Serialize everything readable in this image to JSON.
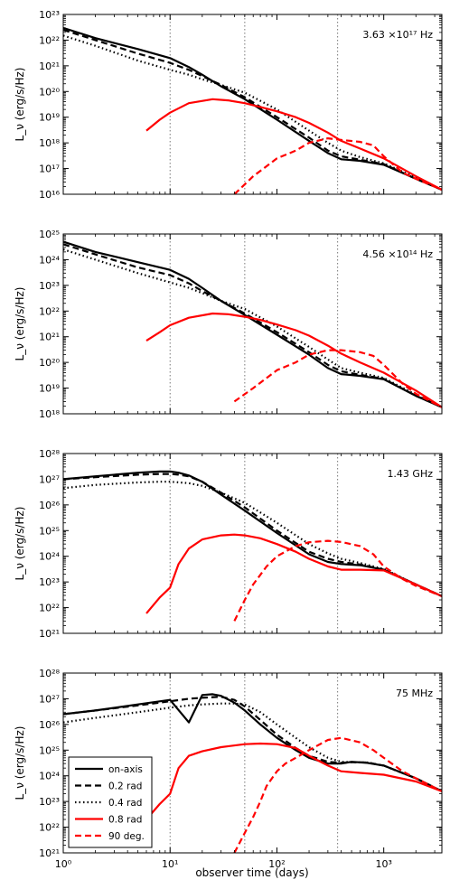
{
  "figure": {
    "x_axis": {
      "label": "observer time (days)",
      "scale": "log",
      "range": [
        1,
        3500
      ],
      "tick_labels": [
        "10⁰",
        "10¹",
        "10²",
        "10³"
      ],
      "tick_values": [
        1,
        10,
        100,
        1000
      ]
    },
    "reference_lines_days": [
      10,
      50,
      370
    ],
    "legend": {
      "placement": "lower-left of bottom panel",
      "entries": [
        {
          "label": "on-axis",
          "color": "#000000",
          "style": "solid"
        },
        {
          "label": "0.2 rad",
          "color": "#000000",
          "style": "dashed"
        },
        {
          "label": "0.4 rad",
          "color": "#000000",
          "style": "dotted"
        },
        {
          "label": "0.8 rad",
          "color": "#ff0000",
          "style": "solid"
        },
        {
          "label": "90 deg.",
          "color": "#ff0000",
          "style": "dashed"
        }
      ]
    }
  },
  "chart_data": [
    {
      "type": "line",
      "freq_label": "3.63 ×10¹⁷ Hz",
      "ylabel": "L_ν (erg/s/Hz)",
      "yscale": "log",
      "ylim": [
        1e+16,
        1e+23
      ],
      "ytick_labels": [
        "10¹⁶",
        "10¹⁷",
        "10¹⁸",
        "10¹⁹",
        "10²⁰",
        "10²¹",
        "10²²",
        "10²³"
      ],
      "series": [
        {
          "name": "on-axis",
          "x": [
            1,
            2,
            5,
            10,
            15,
            20,
            30,
            50,
            100,
            200,
            300,
            400,
            600,
            1000,
            2000,
            3500
          ],
          "y": [
            3e+22,
            1.2e+22,
            4.5e+21,
            2e+21,
            9e+20,
            4.5e+20,
            1.6e+20,
            5e+19,
            8e+18,
            1.2e+18,
            4e+17,
            2.3e+17,
            2e+17,
            1.4e+17,
            4e+16,
            1.5e+16
          ]
        },
        {
          "name": "0.2 rad",
          "x": [
            1,
            2,
            5,
            10,
            15,
            20,
            30,
            50,
            100,
            200,
            300,
            400,
            600,
            1000,
            2000,
            3500
          ],
          "y": [
            2.5e+22,
            1e+22,
            3e+21,
            1.3e+21,
            7e+20,
            4e+20,
            1.8e+20,
            6e+19,
            1e+19,
            1.6e+18,
            5e+17,
            3e+17,
            2.2e+17,
            1.5e+17,
            4e+16,
            1.5e+16
          ]
        },
        {
          "name": "0.4 rad",
          "x": [
            1,
            2,
            5,
            10,
            15,
            20,
            30,
            50,
            100,
            200,
            300,
            400,
            600,
            1000,
            2000,
            3500
          ],
          "y": [
            1.5e+22,
            6e+21,
            1.6e+21,
            7e+20,
            4.5e+20,
            3e+20,
            1.8e+20,
            9e+19,
            2e+19,
            3e+18,
            1e+18,
            5e+17,
            2.8e+17,
            1.6e+17,
            4.5e+16,
            1.5e+16
          ]
        },
        {
          "name": "0.8 rad",
          "x": [
            6,
            8,
            10,
            15,
            25,
            35,
            50,
            70,
            100,
            150,
            200,
            300,
            400,
            600,
            1000,
            2000,
            3500
          ],
          "y": [
            3e+18,
            8e+18,
            1.5e+19,
            3.5e+19,
            5e+19,
            4.5e+19,
            3.5e+19,
            2.5e+19,
            1.7e+19,
            1e+19,
            6e+18,
            2.5e+18,
            1.2e+18,
            6e+17,
            2.5e+17,
            5e+16,
            1.5e+16
          ]
        },
        {
          "name": "90 deg.",
          "x": [
            40,
            60,
            100,
            150,
            200,
            300,
            400,
            600,
            800,
            1000,
            1500,
            2000,
            3500
          ],
          "y": [
            1e+16,
            5e+16,
            2.5e+17,
            5e+17,
            1e+18,
            1.5e+18,
            1.3e+18,
            1.1e+18,
            8e+17,
            3e+17,
            7e+16,
            4e+16,
            1.5e+16
          ]
        }
      ]
    },
    {
      "type": "line",
      "freq_label": "4.56 ×10¹⁴ Hz",
      "ylabel": "L_ν (erg/s/Hz)",
      "yscale": "log",
      "ylim": [
        1e+18,
        1e+25
      ],
      "ytick_labels": [
        "10¹⁸",
        "10¹⁹",
        "10²⁰",
        "10²¹",
        "10²²",
        "10²³",
        "10²⁴",
        "10²⁵"
      ],
      "series": [
        {
          "name": "on-axis",
          "x": [
            1,
            2,
            5,
            10,
            15,
            20,
            30,
            50,
            100,
            200,
            300,
            400,
            600,
            1000,
            2000,
            3500
          ],
          "y": [
            5e+24,
            2e+24,
            8e+23,
            4e+23,
            1.8e+23,
            8e+22,
            2.5e+22,
            7e+21,
            1.2e+21,
            2e+20,
            6e+19,
            3.5e+19,
            3e+19,
            2.2e+19,
            5e+18,
            1.8e+18
          ]
        },
        {
          "name": "0.2 rad",
          "x": [
            1,
            2,
            5,
            10,
            15,
            20,
            30,
            50,
            100,
            200,
            300,
            400,
            600,
            1000,
            2000,
            3500
          ],
          "y": [
            4e+24,
            1.6e+24,
            5e+23,
            2.5e+23,
            1.2e+23,
            6e+22,
            2.5e+22,
            8e+21,
            1.5e+21,
            2.5e+20,
            8e+19,
            4.5e+19,
            3.3e+19,
            2.3e+19,
            5e+18,
            1.8e+18
          ]
        },
        {
          "name": "0.4 rad",
          "x": [
            1,
            2,
            5,
            10,
            15,
            20,
            30,
            50,
            100,
            200,
            300,
            400,
            600,
            1000,
            2000,
            3500
          ],
          "y": [
            2.5e+24,
            1e+24,
            3e+23,
            1.3e+23,
            8e+22,
            5e+22,
            2.5e+22,
            1.2e+22,
            2.5e+21,
            4e+20,
            1.3e+20,
            6e+19,
            4e+19,
            2.5e+19,
            5.5e+18,
            1.8e+18
          ]
        },
        {
          "name": "0.8 rad",
          "x": [
            6,
            8,
            10,
            15,
            25,
            35,
            50,
            70,
            100,
            150,
            200,
            300,
            400,
            600,
            1000,
            2000,
            3500
          ],
          "y": [
            7e+20,
            1.5e+21,
            2.8e+21,
            5.5e+21,
            8e+21,
            7.5e+21,
            6e+21,
            4.5e+21,
            3e+21,
            1.8e+21,
            1.1e+21,
            4.5e+20,
            2.2e+20,
            1e+20,
            4e+19,
            8e+18,
            1.8e+18
          ]
        },
        {
          "name": "90 deg.",
          "x": [
            40,
            60,
            100,
            150,
            200,
            300,
            400,
            600,
            800,
            1000,
            1500,
            2000,
            3500
          ],
          "y": [
            3e+18,
            1e+19,
            5e+19,
            1e+20,
            2e+20,
            3e+20,
            3e+20,
            2.5e+20,
            1.8e+20,
            8e+19,
            1.5e+19,
            6e+18,
            1.8e+18
          ]
        }
      ]
    },
    {
      "type": "line",
      "freq_label": "1.43 GHz",
      "ylabel": "L_ν (erg/s/Hz)",
      "yscale": "log",
      "ylim": [
        1e+21,
        1e+28
      ],
      "ytick_labels": [
        "10²¹",
        "10²²",
        "10²³",
        "10²⁴",
        "10²⁵",
        "10²⁶",
        "10²⁷",
        "10²⁸"
      ],
      "series": [
        {
          "name": "on-axis",
          "x": [
            1,
            2,
            5,
            8,
            10,
            12,
            15,
            20,
            30,
            50,
            100,
            200,
            300,
            400,
            600,
            1000,
            2000,
            3500
          ],
          "y": [
            1e+27,
            1.3e+27,
            1.8e+27,
            2e+27,
            2e+27,
            1.8e+27,
            1.4e+27,
            8e+26,
            2.5e+26,
            6e+25,
            8e+24,
            1.2e+24,
            6e+23,
            5e+23,
            4.5e+23,
            3e+23,
            8e+22,
            2.8e+22
          ]
        },
        {
          "name": "0.2 rad",
          "x": [
            1,
            2,
            5,
            8,
            10,
            12,
            15,
            20,
            30,
            50,
            100,
            200,
            300,
            400,
            600,
            1000,
            2000,
            3500
          ],
          "y": [
            1e+27,
            1.2e+27,
            1.5e+27,
            1.6e+27,
            1.6e+27,
            1.5e+27,
            1.3e+27,
            8e+26,
            3e+26,
            8e+25,
            1e+25,
            1.5e+24,
            8e+23,
            6e+23,
            4.8e+23,
            3e+23,
            8e+22,
            2.8e+22
          ]
        },
        {
          "name": "0.4 rad",
          "x": [
            1,
            2,
            5,
            8,
            10,
            15,
            20,
            30,
            50,
            100,
            200,
            300,
            400,
            600,
            1000,
            2000,
            3500
          ],
          "y": [
            4.5e+26,
            6e+26,
            7.5e+26,
            8e+26,
            8e+26,
            7e+26,
            5.5e+26,
            3e+26,
            1.2e+26,
            2e+25,
            3e+24,
            1.3e+24,
            8e+23,
            5.5e+23,
            3.2e+23,
            8e+22,
            2.8e+22
          ]
        },
        {
          "name": "0.8 rad",
          "x": [
            6,
            8,
            10,
            12,
            15,
            20,
            30,
            40,
            50,
            70,
            100,
            150,
            200,
            300,
            400,
            600,
            1000,
            2000,
            3500
          ],
          "y": [
            6e+21,
            2.5e+22,
            6e+22,
            5e+23,
            2e+24,
            4.5e+24,
            6.5e+24,
            7e+24,
            6.5e+24,
            5e+24,
            3e+24,
            1.5e+24,
            8e+23,
            4e+23,
            3e+23,
            3e+23,
            2.8e+23,
            8e+22,
            2.8e+22
          ]
        },
        {
          "name": "90 deg.",
          "x": [
            40,
            50,
            60,
            80,
            100,
            150,
            200,
            300,
            400,
            600,
            800,
            1000,
            1500,
            2000,
            3500
          ],
          "y": [
            3e+21,
            2e+22,
            8e+22,
            4e+23,
            1e+24,
            2.5e+24,
            3.5e+24,
            4e+24,
            3.6e+24,
            2.5e+24,
            1.2e+24,
            4e+23,
            1.3e+23,
            7e+22,
            2.8e+22
          ]
        }
      ]
    },
    {
      "type": "line",
      "freq_label": "75 MHz",
      "ylabel": "L_ν (erg/s/Hz)",
      "yscale": "log",
      "ylim": [
        1e+21,
        1e+28
      ],
      "xlabel": "observer time (days)",
      "ytick_labels": [
        "10²¹",
        "10²²",
        "10²³",
        "10²⁴",
        "10²⁵",
        "10²⁶",
        "10²⁷",
        "10²⁸"
      ],
      "series": [
        {
          "name": "on-axis",
          "x": [
            1,
            2,
            5,
            10,
            15,
            20,
            25,
            30,
            40,
            50,
            70,
            100,
            150,
            200,
            300,
            400,
            500,
            700,
            1000,
            2000,
            3500
          ],
          "y": [
            2.5e+26,
            3.5e+26,
            6e+26,
            9e+26,
            1.2e+26,
            1.4e+27,
            1.5e+27,
            1.3e+27,
            7e+26,
            3.5e+26,
            1e+26,
            3e+25,
            1e+25,
            5e+24,
            3e+24,
            3e+24,
            3.5e+24,
            3.2e+24,
            2.5e+24,
            8e+23,
            2.5e+23
          ]
        },
        {
          "name": "0.2 rad",
          "x": [
            1,
            2,
            5,
            10,
            15,
            20,
            30,
            40,
            50,
            70,
            100,
            150,
            200,
            300,
            400,
            500,
            700,
            1000,
            2000,
            3500
          ],
          "y": [
            2.5e+26,
            3.5e+26,
            5.5e+26,
            8e+26,
            1e+27,
            1.1e+27,
            1.2e+27,
            9e+26,
            5e+26,
            1.5e+26,
            4e+25,
            1.2e+25,
            6e+24,
            3.5e+24,
            3.2e+24,
            3.4e+24,
            3.3e+24,
            2.5e+24,
            8e+23,
            2.5e+23
          ]
        },
        {
          "name": "0.4 rad",
          "x": [
            1,
            2,
            5,
            10,
            15,
            20,
            30,
            40,
            50,
            70,
            100,
            150,
            200,
            300,
            400,
            500,
            700,
            1000,
            2000,
            3500
          ],
          "y": [
            1.2e+26,
            1.8e+26,
            3e+26,
            4.5e+26,
            5.5e+26,
            6e+26,
            6.5e+26,
            6.5e+26,
            6e+26,
            3e+26,
            1e+26,
            3e+25,
            1.3e+25,
            5e+24,
            3.5e+24,
            3.4e+24,
            3.3e+24,
            2.5e+24,
            8e+23,
            2.5e+23
          ]
        },
        {
          "name": "0.8 rad",
          "x": [
            6,
            8,
            10,
            12,
            15,
            20,
            30,
            50,
            70,
            100,
            150,
            200,
            300,
            400,
            600,
            1000,
            2000,
            3500
          ],
          "y": [
            2e+22,
            8e+22,
            2e+23,
            2e+24,
            6e+24,
            9e+24,
            1.3e+25,
            1.7e+25,
            1.8e+25,
            1.7e+25,
            1.2e+25,
            6e+24,
            2.5e+24,
            1.5e+24,
            1.3e+24,
            1.1e+24,
            6e+23,
            2.5e+23
          ]
        },
        {
          "name": "90 deg.",
          "x": [
            40,
            50,
            60,
            70,
            80,
            100,
            120,
            150,
            200,
            300,
            400,
            600,
            800,
            1000,
            1500,
            2000,
            3500
          ],
          "y": [
            1e+21,
            6e+21,
            2.5e+22,
            1e+23,
            4e+23,
            1.5e+24,
            3e+24,
            5e+24,
            1e+25,
            2.5e+25,
            3e+25,
            2e+25,
            1e+25,
            5e+24,
            1.5e+24,
            8e+23,
            2.5e+23
          ]
        }
      ]
    }
  ]
}
